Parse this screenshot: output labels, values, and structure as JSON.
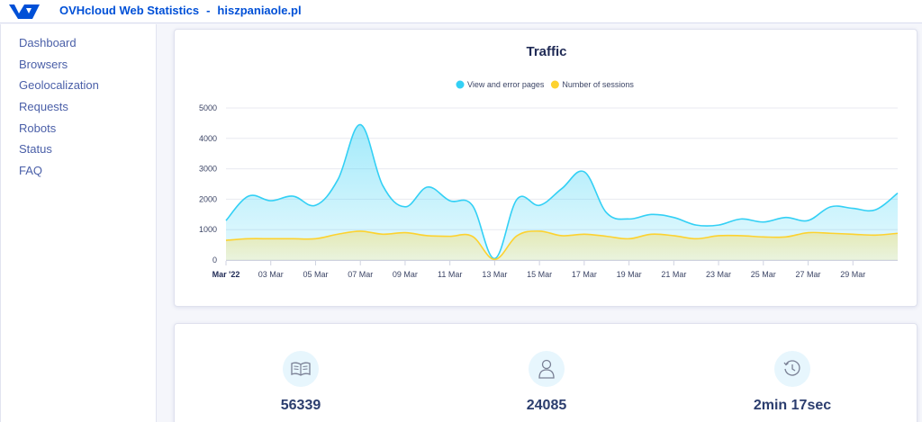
{
  "header": {
    "title": "OVHcloud Web Statistics",
    "separator": "-",
    "site": "hiszpaniaole.pl",
    "logo_icon": "ovhcloud-logo-icon",
    "brand_color": "#0050d7"
  },
  "sidebar": {
    "items": [
      {
        "label": "Dashboard"
      },
      {
        "label": "Browsers"
      },
      {
        "label": "Geolocalization"
      },
      {
        "label": "Requests"
      },
      {
        "label": "Robots"
      },
      {
        "label": "Status"
      },
      {
        "label": "FAQ"
      }
    ]
  },
  "chart_data": {
    "type": "area",
    "title": "Traffic",
    "xlabel": "",
    "ylabel": "",
    "ylim": [
      0,
      5000
    ],
    "yticks": [
      0,
      1000,
      2000,
      3000,
      4000,
      5000
    ],
    "grid": true,
    "legend_position": "top-center",
    "x": [
      1,
      2,
      3,
      4,
      5,
      6,
      7,
      8,
      9,
      10,
      11,
      12,
      13,
      14,
      15,
      16,
      17,
      18,
      19,
      20,
      21,
      22,
      23,
      24,
      25,
      26,
      27,
      28,
      29,
      30,
      31
    ],
    "xtick_labels": [
      {
        "x": 1,
        "label": "Mar '22",
        "bold": true
      },
      {
        "x": 3,
        "label": "03 Mar"
      },
      {
        "x": 5,
        "label": "05 Mar"
      },
      {
        "x": 7,
        "label": "07 Mar"
      },
      {
        "x": 9,
        "label": "09 Mar"
      },
      {
        "x": 11,
        "label": "11 Mar"
      },
      {
        "x": 13,
        "label": "13 Mar"
      },
      {
        "x": 15,
        "label": "15 Mar"
      },
      {
        "x": 17,
        "label": "17 Mar"
      },
      {
        "x": 19,
        "label": "19 Mar"
      },
      {
        "x": 21,
        "label": "21 Mar"
      },
      {
        "x": 23,
        "label": "23 Mar"
      },
      {
        "x": 25,
        "label": "25 Mar"
      },
      {
        "x": 27,
        "label": "27 Mar"
      },
      {
        "x": 29,
        "label": "29 Mar"
      }
    ],
    "series": [
      {
        "name": "View and error pages",
        "color": "#33d0f5",
        "values": [
          1300,
          2100,
          1950,
          2100,
          1800,
          2650,
          4450,
          2450,
          1750,
          2400,
          1950,
          1800,
          50,
          2000,
          1800,
          2350,
          2900,
          1550,
          1350,
          1500,
          1400,
          1150,
          1150,
          1350,
          1250,
          1400,
          1300,
          1750,
          1700,
          1650,
          2200
        ]
      },
      {
        "name": "Number of sessions",
        "color": "#fdd22f",
        "values": [
          650,
          700,
          700,
          700,
          700,
          850,
          950,
          850,
          900,
          800,
          780,
          780,
          20,
          800,
          950,
          800,
          850,
          780,
          700,
          850,
          800,
          700,
          800,
          800,
          760,
          760,
          900,
          880,
          850,
          820,
          880
        ]
      }
    ]
  },
  "stats": [
    {
      "icon": "book-icon",
      "value": "56339"
    },
    {
      "icon": "user-icon",
      "value": "24085"
    },
    {
      "icon": "clock-history-icon",
      "value": "2min 17sec"
    }
  ]
}
